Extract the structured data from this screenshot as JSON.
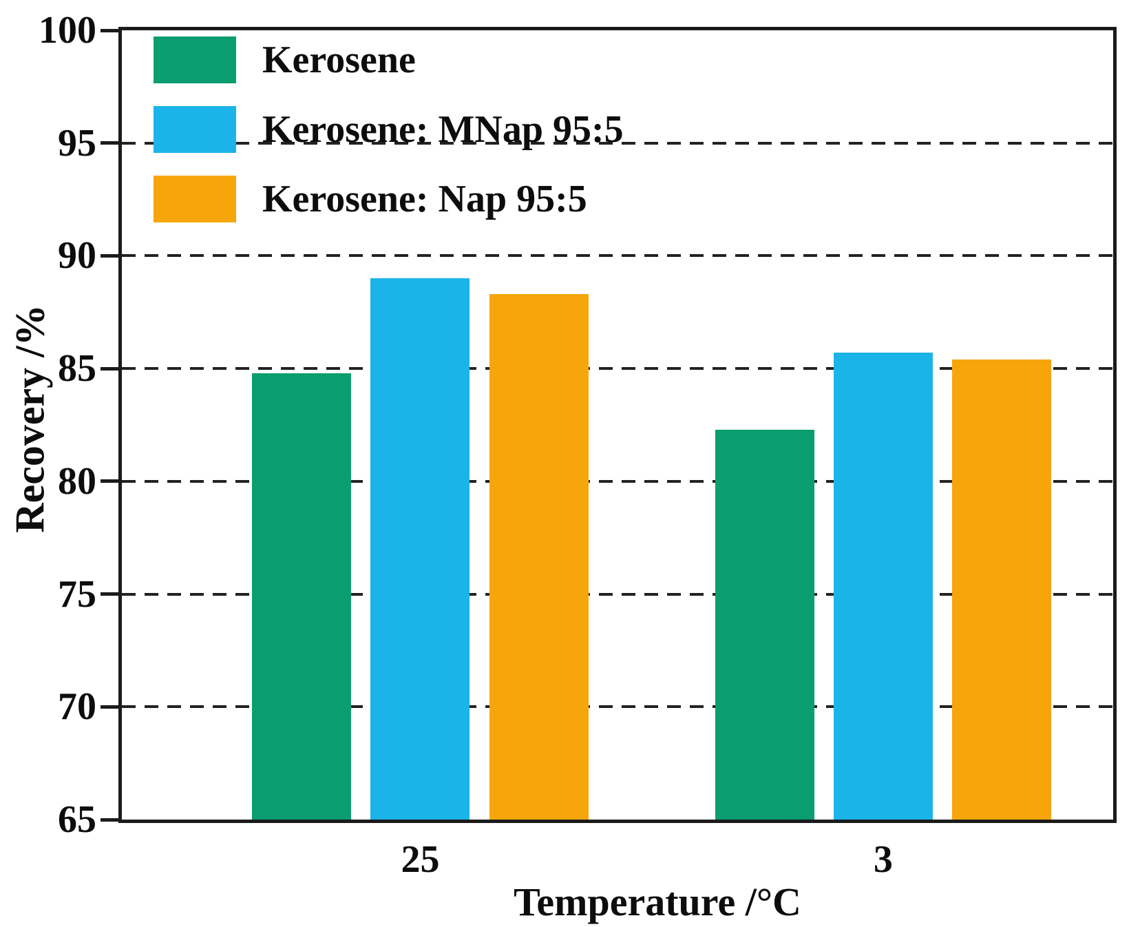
{
  "figure": {
    "background": "#ffffff",
    "axis_color": "#1b1b1b",
    "grid_color": "#222222",
    "text_color": "#0d0d0d"
  },
  "chart_data": {
    "type": "bar",
    "title": "",
    "xlabel": "Temperature /°C",
    "ylabel": "Recovery /%",
    "categories": [
      "25",
      "3"
    ],
    "series": [
      {
        "name": "Kerosene",
        "color": "#0a9d6f",
        "values": [
          84.8,
          82.3
        ]
      },
      {
        "name": "Kerosene: MNap 95:5",
        "color": "#1ab4e9",
        "values": [
          89.0,
          85.7
        ]
      },
      {
        "name": "Kerosene: Nap 95:5",
        "color": "#f6a60b",
        "values": [
          88.3,
          85.4
        ]
      }
    ],
    "ylim": [
      65,
      100
    ],
    "yticks": [
      65,
      70,
      75,
      80,
      85,
      90,
      95,
      100
    ],
    "gridline_values": [
      70,
      75,
      80,
      85,
      90,
      95
    ],
    "grid_style": "dashed-horizontal",
    "legend_position": "top-left-inside",
    "legend": [
      "Kerosene",
      "Kerosene: MNap 95:5",
      "Kerosene: Nap 95:5"
    ]
  }
}
